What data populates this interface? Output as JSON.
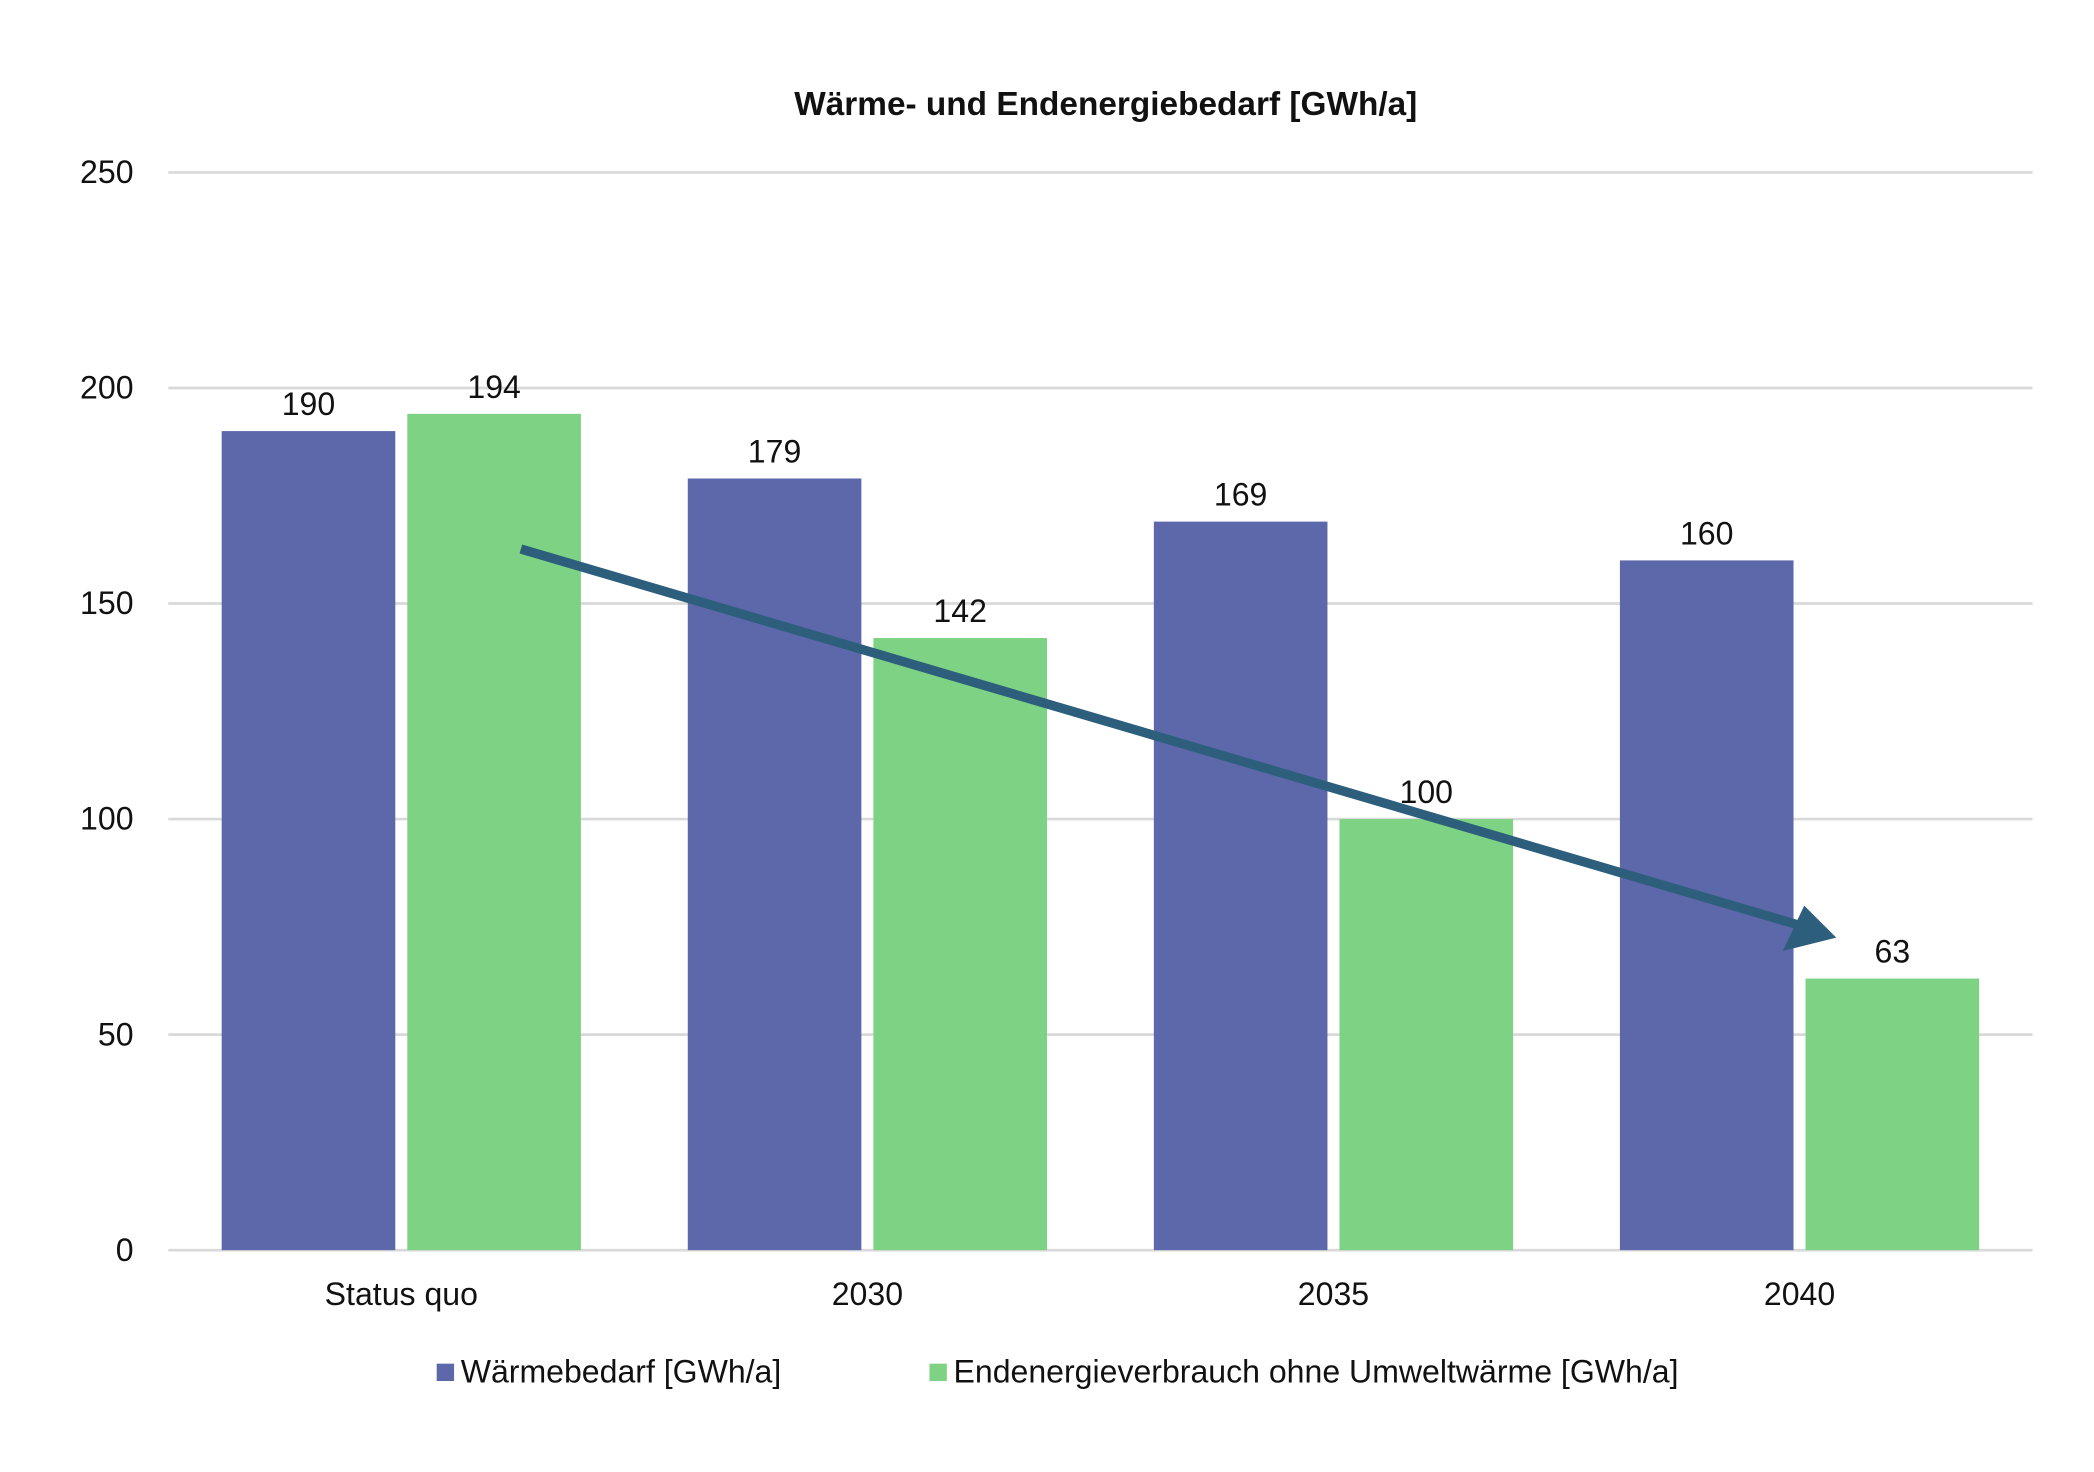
{
  "chart_data": {
    "type": "bar",
    "title": "Wärme- und Endenergiebedarf [GWh/a]",
    "xlabel": "",
    "ylabel": "",
    "categories": [
      "Status quo",
      "2030",
      "2035",
      "2040"
    ],
    "series": [
      {
        "name": "Wärmebedarf [GWh/a]",
        "values": [
          190,
          179,
          169,
          160
        ],
        "color": "#5d68ab"
      },
      {
        "name": "Endenergieverbrauch ohne Umweltwärme [GWh/a]",
        "values": [
          194,
          142,
          100,
          63
        ],
        "color": "#7dd383"
      }
    ],
    "ylim": [
      0,
      250
    ],
    "yticks": [
      0,
      50,
      100,
      150,
      200,
      250
    ],
    "grid": true,
    "legend_position": "bottom",
    "data_labels": true,
    "trend_arrow": {
      "color": "#2d5f7c",
      "direction": "down",
      "from_category": "Status quo",
      "to_category": "2040"
    }
  }
}
